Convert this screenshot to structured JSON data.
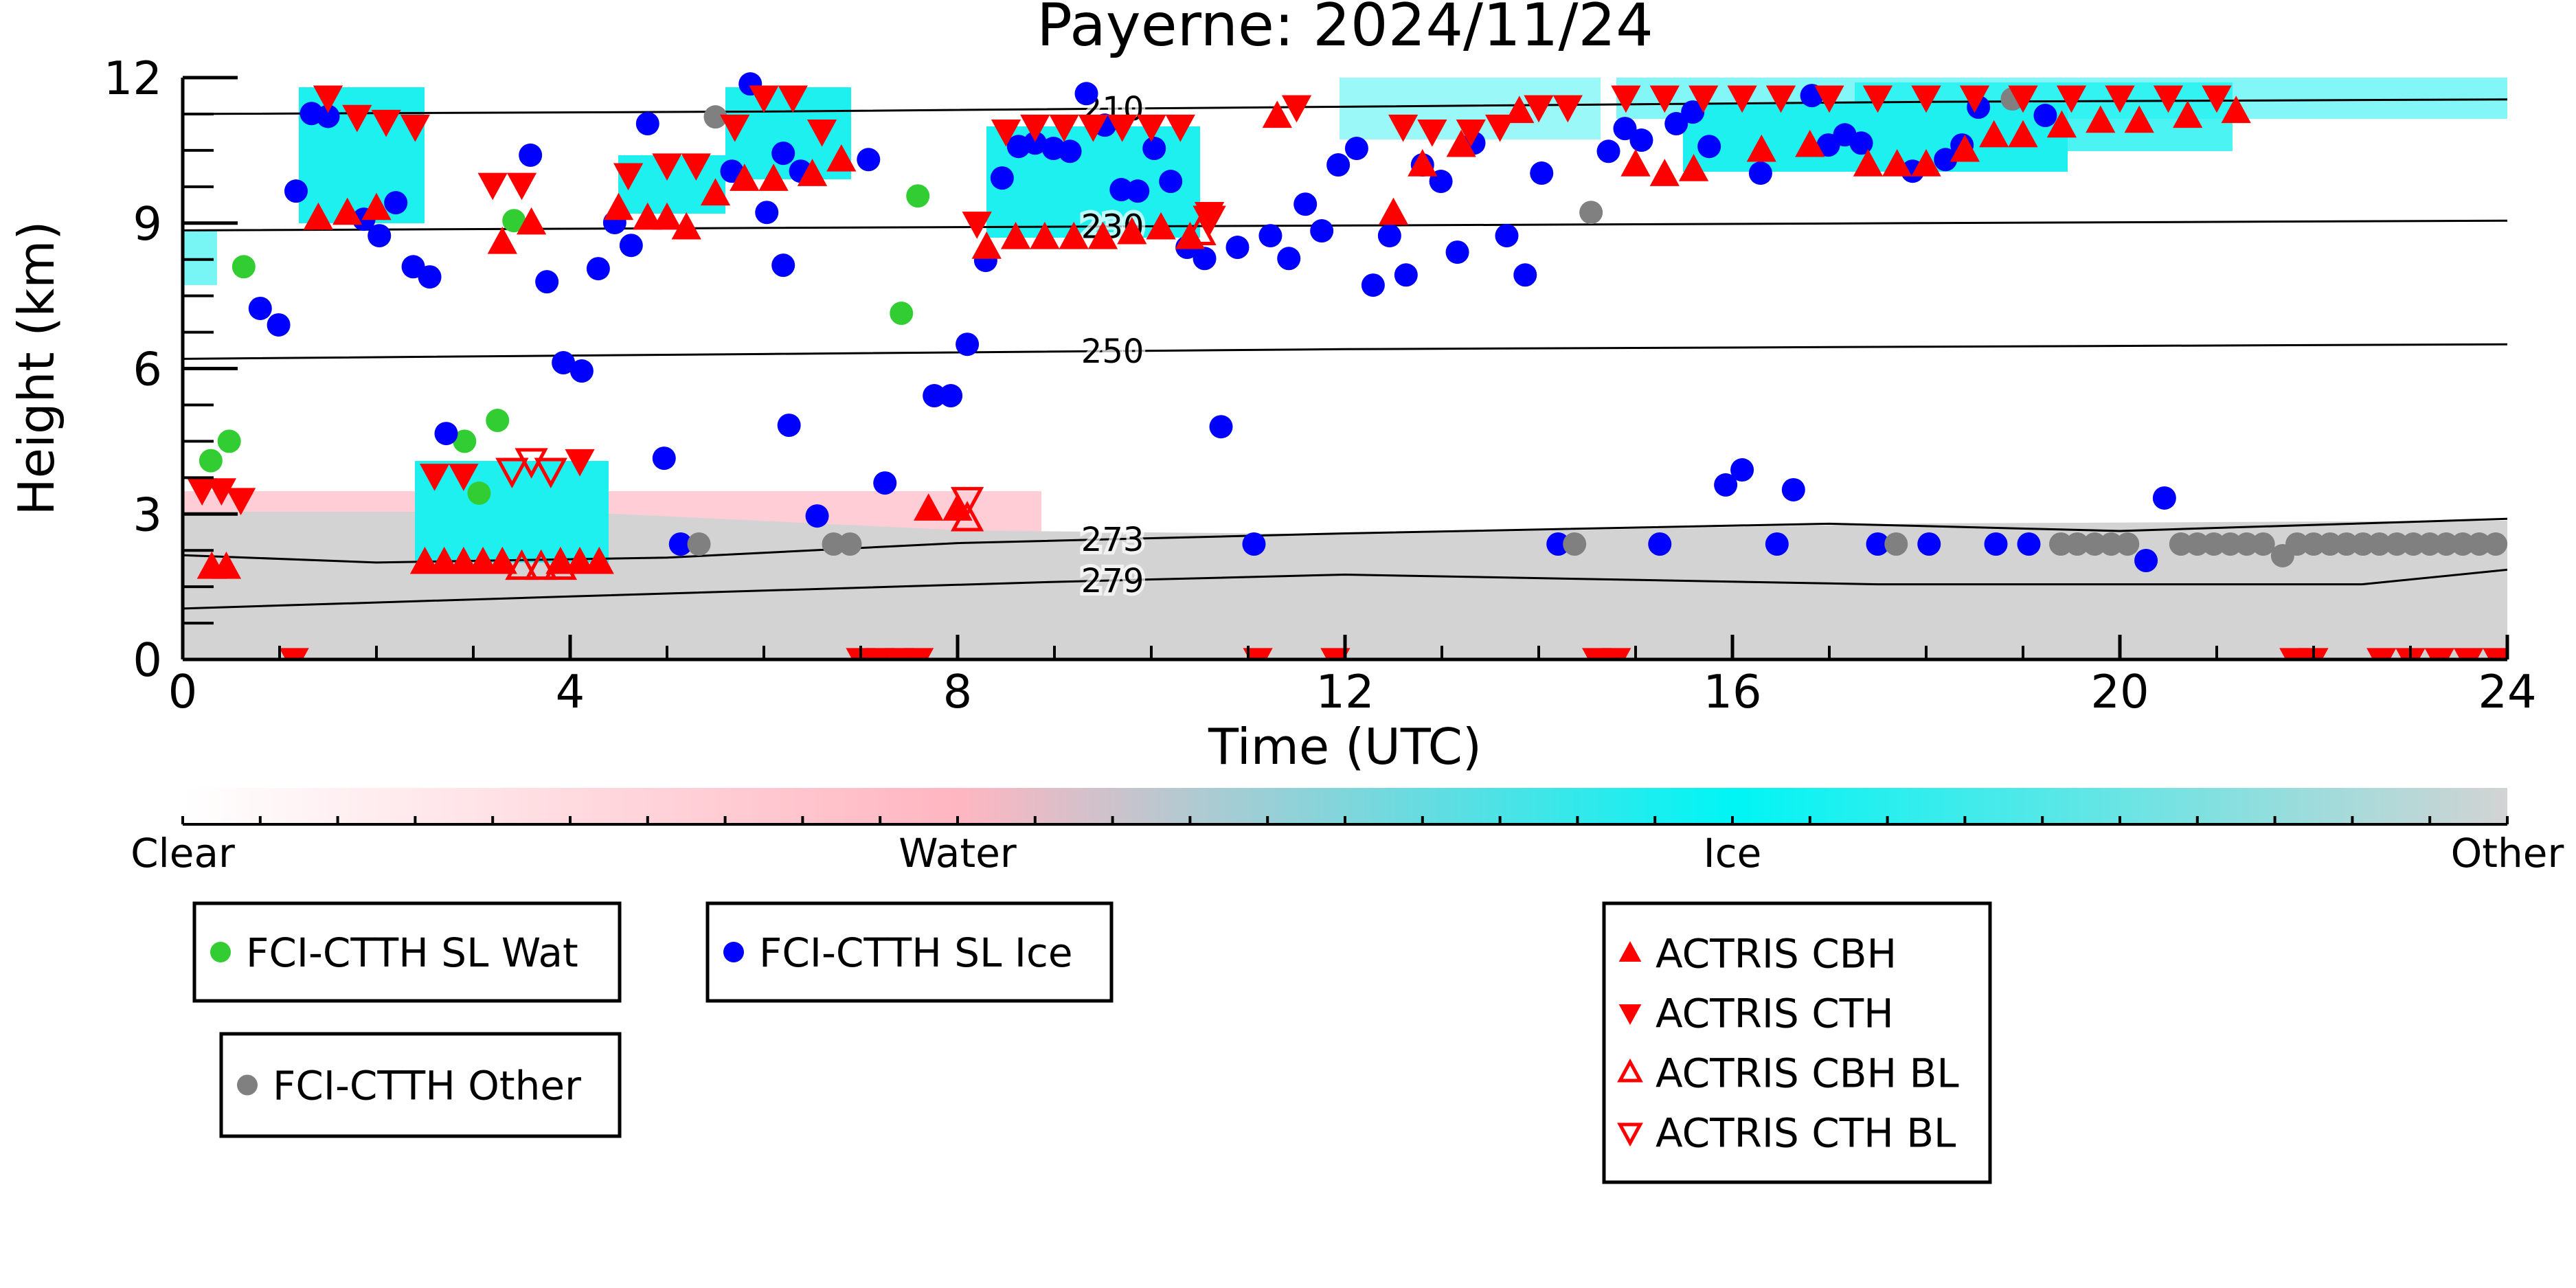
{
  "chart_data": {
    "type": "scatter",
    "title": "Payerne: 2024/11/24",
    "xlabel": "Time (UTC)",
    "ylabel": "Height (km)",
    "xlim": [
      0,
      24
    ],
    "ylim": [
      0,
      12
    ],
    "xticks": [
      0,
      4,
      8,
      12,
      16,
      20,
      24
    ],
    "yticks": [
      0,
      3,
      6,
      9,
      12
    ],
    "colorbar": {
      "labels": [
        "Clear",
        "Water",
        "Ice",
        "Other"
      ]
    },
    "contours": [
      {
        "level": 210,
        "x": [
          0,
          6,
          12,
          18,
          24
        ],
        "y": [
          11.25,
          11.3,
          11.4,
          11.5,
          11.55
        ]
      },
      {
        "level": 230,
        "x": [
          0,
          6,
          12,
          18,
          24
        ],
        "y": [
          8.85,
          8.9,
          8.95,
          9.0,
          9.05
        ]
      },
      {
        "level": 250,
        "x": [
          0,
          6,
          12,
          18,
          24
        ],
        "y": [
          6.2,
          6.3,
          6.4,
          6.45,
          6.5
        ]
      },
      {
        "level": 273,
        "x": [
          0,
          2,
          5,
          8,
          12,
          17,
          20,
          24
        ],
        "y": [
          2.15,
          2.0,
          2.1,
          2.4,
          2.6,
          2.8,
          2.65,
          2.9
        ]
      },
      {
        "level": 279,
        "x": [
          0,
          4,
          9,
          12,
          17.5,
          22.5,
          24
        ],
        "y": [
          1.05,
          1.3,
          1.6,
          1.75,
          1.55,
          1.55,
          1.85
        ]
      }
    ],
    "series": [
      {
        "name": "FCI-CTTH SL Wat",
        "color": "#32cd32",
        "marker": "circle",
        "filled": true,
        "x": [
          0.63,
          0.29,
          0.48,
          3.42,
          2.91,
          3.25,
          3.06,
          7.59,
          7.42
        ],
        "y": [
          8.1,
          4.1,
          4.5,
          9.05,
          4.5,
          4.93,
          3.43,
          9.56,
          7.14
        ]
      },
      {
        "name": "FCI-CTTH SL Ice",
        "color": "#0000ff",
        "marker": "circle",
        "filled": true,
        "x": [
          1.33,
          1.5,
          1.17,
          0.8,
          0.99,
          1.87,
          2.2,
          2.03,
          2.38,
          2.55,
          2.72,
          3.59,
          3.76,
          3.93,
          4.12,
          4.29,
          4.46,
          4.63,
          4.8,
          4.97,
          5.14,
          5.67,
          5.86,
          6.03,
          6.2,
          6.2,
          6.26,
          6.38,
          6.55,
          7.08,
          7.25,
          8.1,
          7.76,
          7.93,
          8.46,
          8.29,
          8.63,
          8.8,
          8.99,
          9.16,
          9.33,
          9.52,
          9.69,
          9.86,
          10.2,
          10.03,
          10.37,
          10.55,
          10.89,
          10.72,
          11.06,
          11.23,
          11.42,
          11.59,
          11.76,
          11.93,
          12.12,
          12.29,
          12.46,
          12.63,
          12.8,
          12.99,
          13.16,
          13.33,
          13.67,
          13.86,
          14.03,
          14.2,
          14.72,
          14.89,
          15.06,
          15.25,
          15.42,
          15.59,
          15.76,
          15.93,
          16.1,
          16.29,
          16.46,
          16.63,
          16.82,
          16.99,
          17.16,
          17.33,
          17.5,
          17.86,
          18.03,
          18.2,
          18.37,
          18.54,
          18.72,
          19.06,
          19.23,
          20.27,
          20.46
        ],
        "y": [
          11.26,
          11.2,
          9.66,
          7.24,
          6.9,
          9.08,
          9.42,
          8.74,
          8.1,
          7.89,
          4.66,
          10.4,
          7.79,
          6.12,
          5.95,
          8.06,
          9.01,
          8.54,
          11.05,
          4.15,
          2.38,
          10.07,
          11.87,
          9.22,
          8.13,
          10.44,
          4.83,
          10.07,
          2.96,
          10.31,
          3.64,
          6.5,
          5.44,
          5.44,
          9.93,
          8.23,
          10.58,
          10.65,
          10.54,
          10.48,
          11.67,
          11.02,
          9.69,
          9.66,
          9.86,
          10.54,
          8.5,
          8.27,
          8.5,
          4.8,
          2.38,
          8.74,
          8.27,
          9.39,
          8.84,
          10.2,
          10.54,
          7.72,
          8.74,
          7.93,
          10.2,
          9.86,
          8.4,
          10.65,
          8.74,
          7.93,
          10.03,
          2.38,
          10.48,
          10.95,
          10.71,
          2.38,
          11.05,
          11.29,
          10.58,
          3.6,
          3.91,
          10.03,
          2.38,
          3.5,
          11.63,
          10.61,
          10.82,
          10.65,
          2.38,
          10.07,
          2.38,
          10.31,
          10.61,
          11.39,
          2.38,
          2.38,
          11.22,
          2.04,
          3.33
        ]
      },
      {
        "name": "FCI-CTTH Other",
        "color": "#808080",
        "marker": "circle",
        "filled": true,
        "x": [
          5.33,
          5.5,
          6.72,
          6.89,
          14.37,
          14.54,
          17.69,
          18.89,
          19.39,
          19.56,
          19.74,
          19.91,
          20.08,
          20.63,
          20.8,
          20.97,
          21.14,
          21.31,
          21.48,
          21.68,
          21.83,
          22.0,
          22.17,
          22.34,
          22.51,
          22.68,
          22.86,
          23.03,
          23.2,
          23.37,
          23.54,
          23.71,
          23.88
        ],
        "y": [
          2.38,
          11.19,
          2.38,
          2.38,
          2.38,
          9.22,
          2.38,
          11.56,
          2.38,
          2.38,
          2.38,
          2.38,
          2.38,
          2.38,
          2.38,
          2.38,
          2.38,
          2.38,
          2.38,
          2.14,
          2.38,
          2.38,
          2.38,
          2.38,
          2.38,
          2.38,
          2.38,
          2.38,
          2.38,
          2.38,
          2.38,
          2.38,
          2.38
        ]
      },
      {
        "name": "ACTRIS CBH",
        "color": "#ff0000",
        "marker": "triangle-up",
        "filled": true,
        "x": [
          0.3,
          0.45,
          2.5,
          2.7,
          2.9,
          3.1,
          3.3,
          3.9,
          4.1,
          4.3,
          1.4,
          1.7,
          2.0,
          3.3,
          3.6,
          4.5,
          4.8,
          5.0,
          5.2,
          5.5,
          5.8,
          6.1,
          6.5,
          6.8,
          8.3,
          8.6,
          8.9,
          9.2,
          9.5,
          9.8,
          10.1,
          10.4,
          7.7,
          8.0,
          11.3,
          12.5,
          12.8,
          13.2,
          13.8,
          15.0,
          15.3,
          15.6,
          16.3,
          16.8,
          17.4,
          17.7,
          18.0,
          18.4,
          18.7,
          19.0,
          19.4,
          19.8,
          20.2,
          20.7,
          21.2
        ],
        "y": [
          1.9,
          1.9,
          2.0,
          2.0,
          2.0,
          2.0,
          2.0,
          2.0,
          2.0,
          2.0,
          9.1,
          9.2,
          9.3,
          8.6,
          9.0,
          9.3,
          9.1,
          9.1,
          8.9,
          9.6,
          9.9,
          9.9,
          10.0,
          10.3,
          8.5,
          8.7,
          8.7,
          8.7,
          8.7,
          8.8,
          8.9,
          8.7,
          3.1,
          3.1,
          11.2,
          9.2,
          10.2,
          10.6,
          11.3,
          10.2,
          10.0,
          10.1,
          10.5,
          10.6,
          10.2,
          10.2,
          10.2,
          10.5,
          10.8,
          10.8,
          11.0,
          11.1,
          11.1,
          11.2,
          11.3
        ]
      },
      {
        "name": "ACTRIS CTH",
        "color": "#ff0000",
        "marker": "triangle-down",
        "filled": true,
        "x": [
          0.2,
          0.4,
          0.6,
          1.5,
          1.8,
          2.1,
          2.4,
          2.6,
          2.9,
          3.2,
          3.5,
          4.1,
          4.6,
          5.0,
          5.3,
          5.7,
          6.0,
          6.3,
          6.6,
          8.2,
          8.5,
          8.8,
          9.1,
          9.4,
          9.7,
          10.0,
          10.3,
          10.6,
          11.5,
          12.6,
          12.9,
          13.3,
          13.6,
          14.0,
          14.3,
          14.9,
          15.3,
          15.7,
          16.1,
          16.5,
          17.0,
          17.5,
          18.0,
          18.5,
          19.0,
          19.5,
          20.0,
          20.5,
          21.0,
          1.15,
          7.0,
          7.2,
          7.4,
          7.6,
          11.1,
          11.9,
          14.6,
          14.8,
          21.8,
          22.0,
          22.7,
          23.0,
          23.3,
          23.6,
          23.9
        ],
        "y": [
          3.5,
          3.5,
          3.3,
          11.6,
          11.2,
          11.1,
          11.0,
          3.8,
          3.8,
          9.8,
          9.8,
          4.1,
          10.0,
          10.2,
          10.2,
          11.0,
          11.6,
          11.6,
          10.9,
          9.0,
          10.9,
          11.0,
          11.0,
          11.0,
          11.0,
          11.0,
          11.0,
          9.2,
          11.4,
          11.0,
          10.9,
          10.9,
          11.0,
          11.4,
          11.4,
          11.6,
          11.6,
          11.6,
          11.6,
          11.6,
          11.6,
          11.6,
          11.6,
          11.6,
          11.6,
          11.6,
          11.6,
          11.6,
          11.6,
          0,
          0,
          0,
          0,
          0,
          0,
          0,
          0,
          0,
          0,
          0,
          0,
          0,
          0,
          0,
          0
        ]
      },
      {
        "name": "ACTRIS CBH BL",
        "color": "#ff0000",
        "marker": "triangle-up",
        "filled": false,
        "x": [
          3.5,
          3.7,
          3.9,
          8.1,
          10.5
        ],
        "y": [
          1.9,
          1.9,
          1.9,
          2.9,
          8.8
        ]
      },
      {
        "name": "ACTRIS CTH BL",
        "color": "#ff0000",
        "marker": "triangle-down",
        "filled": false,
        "x": [
          3.4,
          3.6,
          3.8,
          10.6,
          8.1
        ],
        "y": [
          3.9,
          4.1,
          3.9,
          9.1,
          3.3
        ]
      }
    ]
  }
}
